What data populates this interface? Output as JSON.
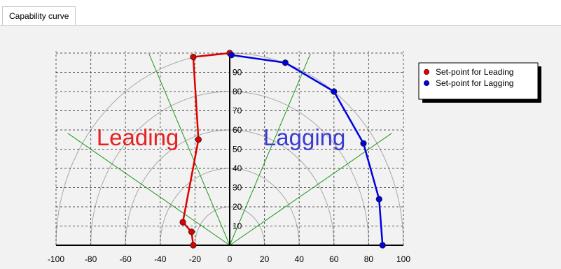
{
  "tabs": [
    {
      "label": "Capability curve",
      "active": true
    }
  ],
  "chart_data": {
    "type": "polar-capability",
    "xlim": [
      -100,
      100
    ],
    "ylim": [
      0,
      100
    ],
    "x_ticks": [
      "-100",
      "-80",
      "-60",
      "-40",
      "-20",
      "0",
      "20",
      "40",
      "60",
      "80",
      "100"
    ],
    "y_ticks": [
      "10",
      "20",
      "30",
      "40",
      "50",
      "60",
      "70",
      "80",
      "90"
    ],
    "grid": true,
    "legend_position": "top-right",
    "region_labels": {
      "leading": {
        "text": "Leading",
        "color": "#e32222"
      },
      "lagging": {
        "text": "Lagging",
        "color": "#3b3bd0"
      }
    },
    "series": [
      {
        "name": "Set-point for Leading",
        "color": "#e00000",
        "points": [
          {
            "x": -21,
            "y": 0
          },
          {
            "x": -22,
            "y": 7
          },
          {
            "x": -27,
            "y": 12
          },
          {
            "x": -18,
            "y": 55
          },
          {
            "x": -21,
            "y": 98
          },
          {
            "x": 0,
            "y": 100
          }
        ]
      },
      {
        "name": "Set-point for Lagging",
        "color": "#0000e0",
        "points": [
          {
            "x": 1,
            "y": 99
          },
          {
            "x": 32,
            "y": 95
          },
          {
            "x": 60,
            "y": 80
          },
          {
            "x": 77,
            "y": 53
          },
          {
            "x": 86,
            "y": 24
          },
          {
            "x": 88,
            "y": 0
          }
        ]
      }
    ]
  },
  "colors": {
    "panel": "#f2f2f2",
    "gray_arcs": "#a8a8a8",
    "green_rays": "#1a9a1a",
    "grid": "#555555"
  }
}
